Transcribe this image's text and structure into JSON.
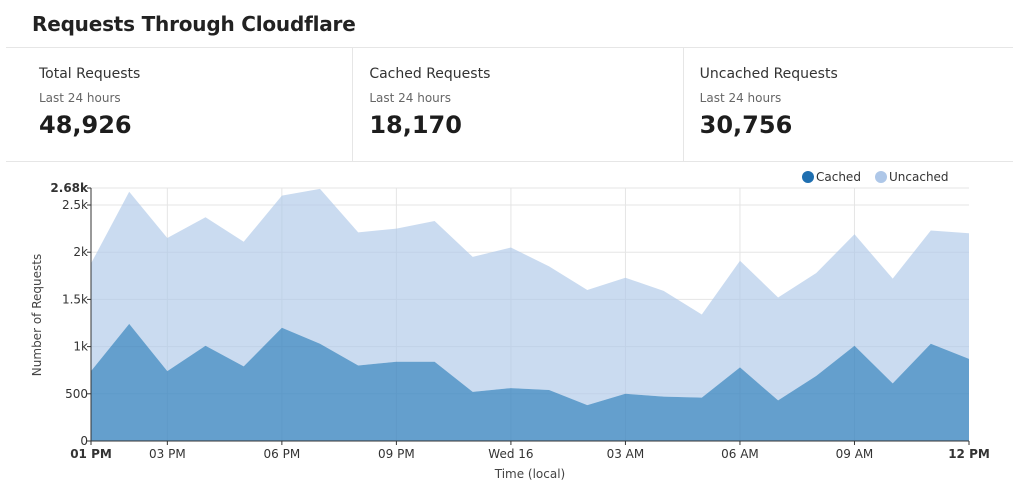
{
  "page_title": "Requests Through Cloudflare",
  "stats": [
    {
      "label": "Total Requests",
      "period": "Last 24 hours",
      "value": "48,926"
    },
    {
      "label": "Cached Requests",
      "period": "Last 24 hours",
      "value": "18,170"
    },
    {
      "label": "Uncached Requests",
      "period": "Last 24 hours",
      "value": "30,756"
    }
  ],
  "chart_data": {
    "type": "area",
    "stacked": true,
    "xlabel": "Time (local)",
    "ylabel": "Number of Requests",
    "ylim": [
      0,
      2680
    ],
    "y_ticks": [
      {
        "value": 0,
        "label": "0"
      },
      {
        "value": 500,
        "label": "500"
      },
      {
        "value": 1000,
        "label": "1k"
      },
      {
        "value": 1500,
        "label": "1.5k"
      },
      {
        "value": 2000,
        "label": "2k"
      },
      {
        "value": 2500,
        "label": "2.5k"
      },
      {
        "value": 2680,
        "label": "2.68k"
      }
    ],
    "x_ticks": [
      {
        "index": 0,
        "label": "01 PM",
        "bold": true
      },
      {
        "index": 2,
        "label": "03 PM",
        "bold": false
      },
      {
        "index": 5,
        "label": "06 PM",
        "bold": false
      },
      {
        "index": 8,
        "label": "09 PM",
        "bold": false
      },
      {
        "index": 11,
        "label": "Wed 16",
        "bold": false
      },
      {
        "index": 14,
        "label": "03 AM",
        "bold": false
      },
      {
        "index": 17,
        "label": "06 AM",
        "bold": false
      },
      {
        "index": 20,
        "label": "09 AM",
        "bold": false
      },
      {
        "index": 23,
        "label": "12 PM",
        "bold": true
      }
    ],
    "legend_position": "top-right",
    "grid": true,
    "x": [
      "01 PM",
      "02 PM",
      "03 PM",
      "04 PM",
      "05 PM",
      "06 PM",
      "07 PM",
      "08 PM",
      "09 PM",
      "10 PM",
      "11 PM",
      "Wed 16",
      "01 AM",
      "02 AM",
      "03 AM",
      "04 AM",
      "05 AM",
      "06 AM",
      "07 AM",
      "08 AM",
      "09 AM",
      "10 AM",
      "11 AM",
      "12 PM"
    ],
    "series": [
      {
        "name": "Cached",
        "color": "#3d87c0",
        "values": [
          740,
          1240,
          740,
          1010,
          790,
          1200,
          1030,
          800,
          840,
          840,
          520,
          560,
          540,
          380,
          500,
          470,
          460,
          780,
          430,
          690,
          1010,
          610,
          1030,
          870
        ]
      },
      {
        "name": "Uncached",
        "color": "#aec7e8",
        "values": [
          1140,
          1400,
          1410,
          1360,
          1320,
          1400,
          1640,
          1410,
          1410,
          1490,
          1430,
          1490,
          1310,
          1220,
          1230,
          1120,
          880,
          1130,
          1090,
          1090,
          1180,
          1110,
          1200,
          1330
        ]
      }
    ]
  }
}
